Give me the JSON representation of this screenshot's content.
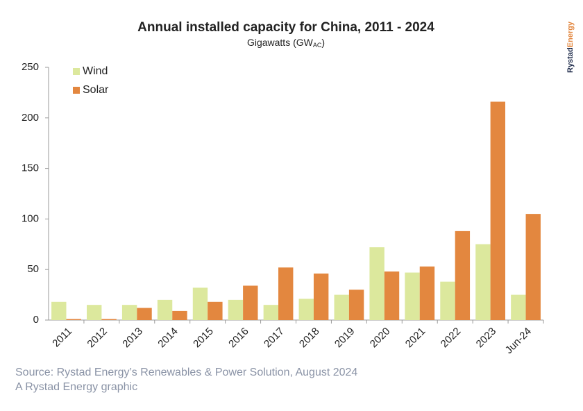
{
  "chart_data": {
    "type": "bar",
    "title": "Annual installed capacity for China, 2011 - 2024",
    "subtitle": {
      "text": "Gigawatts (GW",
      "subscript": "AC",
      "close": ")"
    },
    "brand": {
      "first": "Rystad",
      "second": "Energy"
    },
    "source": "Source: Rystad Energy’s Renewables & Power Solution, August 2024",
    "credit": "A Rystad Energy graphic",
    "categories": [
      "2011",
      "2012",
      "2013",
      "2014",
      "2015",
      "2016",
      "2017",
      "2018",
      "2019",
      "2020",
      "2021",
      "2022",
      "2023",
      "Jun-24"
    ],
    "series": [
      {
        "name": "Wind",
        "color": "#dce89d",
        "values": [
          18,
          15,
          15,
          20,
          32,
          20,
          15,
          21,
          25,
          72,
          47,
          38,
          75,
          25
        ]
      },
      {
        "name": "Solar",
        "color": "#e3873f",
        "values": [
          1,
          1,
          12,
          9,
          18,
          34,
          52,
          46,
          30,
          48,
          53,
          88,
          216,
          105
        ]
      }
    ],
    "ylim": [
      0,
      250
    ],
    "yticks": [
      0,
      50,
      100,
      150,
      200,
      250
    ],
    "grid": false
  }
}
